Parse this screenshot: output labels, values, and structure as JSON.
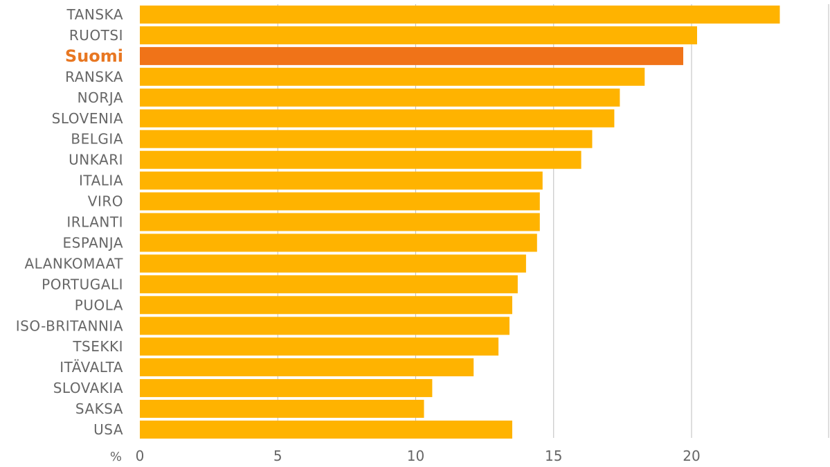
{
  "chart_data": {
    "type": "bar",
    "orientation": "horizontal",
    "categories": [
      "TANSKA",
      "RUOTSI",
      "Suomi",
      "RANSKA",
      "NORJA",
      "SLOVENIA",
      "BELGIA",
      "UNKARI",
      "ITALIA",
      "VIRO",
      "IRLANTI",
      "ESPANJA",
      "ALANKOMAAT",
      "PORTUGALI",
      "PUOLA",
      "ISO-BRITANNIA",
      "TSEKKI",
      "ITÄVALTA",
      "SLOVAKIA",
      "SAKSA",
      "USA"
    ],
    "values": [
      23.2,
      20.2,
      19.7,
      18.3,
      17.4,
      17.2,
      16.4,
      16.0,
      14.6,
      14.5,
      14.5,
      14.4,
      14.0,
      13.7,
      13.5,
      13.4,
      13.0,
      12.1,
      10.6,
      10.3,
      13.5
    ],
    "highlight": "Suomi",
    "xlim": [
      0,
      25
    ],
    "xticks": [
      0,
      5,
      10,
      15,
      20
    ],
    "xtick_labels": [
      "0",
      "5",
      "10",
      "15",
      "20"
    ],
    "xlabel": "%",
    "title": "",
    "ylabel": "",
    "grid": true
  },
  "colors": {
    "bar": "#ffb300",
    "highlight_bar": "#f07318",
    "highlight_text": "#e87722",
    "text": "#666666",
    "grid": "#bdbdbd"
  }
}
